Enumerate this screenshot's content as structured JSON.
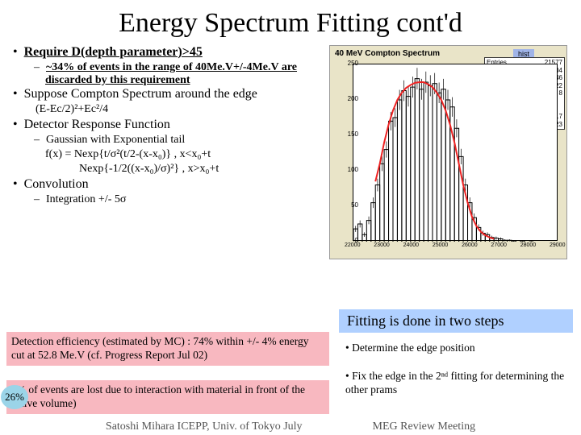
{
  "title": "Energy Spectrum Fitting cont'd",
  "bullets": {
    "b1": "Require D(depth parameter)>45",
    "b1a": "~34% of events in the range of 40Me.V+/-4Me.V are discarded by this requirement",
    "b2": "Suppose Compton Spectrum around the edge",
    "b2f": "(E-Ec/2)²+Ec²/4",
    "b3": "Detector Response Function",
    "b3a": "Gaussian with Exponential tail",
    "b3f1": "f(x) = Nexp{t/σ²(t/2-(x-x₀)} , x<x₀+t",
    "b3f2": "Nexp{-1/2((x-x₀)/σ)²} , x>x₀+t",
    "b4": "Convolution",
    "b4a": "Integration +/- 5σ"
  },
  "chart": {
    "title": "40 MeV Compton Spectrum",
    "label": "hist",
    "stats": {
      "r1k": "Entries",
      "r1v": "21577",
      "r2k": "Mean",
      "r2v": "2.407e+04",
      "r3k": "RMS",
      "r3v": "1346",
      "r4k": "χ²/ndf",
      "r4v": "56.12 / 22",
      "r5k": "Edge",
      "r5v": "2.545e+04 ± 8",
      "r6k": "Sigma",
      "r6v": "3.29e+06 ± 8.01e+10",
      "r7k": "Sigma2",
      "r7v": "347.5 ± 8.7",
      "r8k": "",
      "r8v": "-157 ± 45.23"
    },
    "y": {
      "max": 250,
      "ticks": [
        0,
        50,
        100,
        150,
        200,
        250
      ]
    },
    "x": {
      "min": 22000,
      "max": 29000,
      "ticks": [
        22000,
        23000,
        24000,
        25000,
        26000,
        27000,
        28000,
        29000
      ]
    },
    "bins": [
      [
        22000,
        18
      ],
      [
        22150,
        25
      ],
      [
        22300,
        10
      ],
      [
        22450,
        30
      ],
      [
        22600,
        55
      ],
      [
        22750,
        80
      ],
      [
        22900,
        110
      ],
      [
        23050,
        130
      ],
      [
        23200,
        170
      ],
      [
        23350,
        175
      ],
      [
        23500,
        200
      ],
      [
        23650,
        213
      ],
      [
        23800,
        205
      ],
      [
        23950,
        218
      ],
      [
        24100,
        230
      ],
      [
        24250,
        215
      ],
      [
        24400,
        225
      ],
      [
        24550,
        220
      ],
      [
        24700,
        223
      ],
      [
        24850,
        210
      ],
      [
        25000,
        215
      ],
      [
        25150,
        200
      ],
      [
        25300,
        190
      ],
      [
        25450,
        160
      ],
      [
        25600,
        120
      ],
      [
        25750,
        80
      ],
      [
        25900,
        55
      ],
      [
        26050,
        34
      ],
      [
        26200,
        20
      ],
      [
        26350,
        12
      ],
      [
        26500,
        10
      ],
      [
        26650,
        6
      ],
      [
        26800,
        5
      ],
      [
        26950,
        4
      ],
      [
        27100,
        2
      ],
      [
        27250,
        2
      ],
      [
        27400,
        1
      ],
      [
        27700,
        1
      ],
      [
        28000,
        0
      ]
    ],
    "fit": [
      [
        22750,
        85
      ],
      [
        22900,
        110
      ],
      [
        23050,
        140
      ],
      [
        23200,
        165
      ],
      [
        23350,
        185
      ],
      [
        23500,
        200
      ],
      [
        23650,
        210
      ],
      [
        23800,
        217
      ],
      [
        23950,
        221
      ],
      [
        24100,
        224
      ],
      [
        24250,
        225
      ],
      [
        24400,
        225
      ],
      [
        24550,
        222
      ],
      [
        24700,
        218
      ],
      [
        24850,
        210
      ],
      [
        25000,
        200
      ],
      [
        25150,
        185
      ],
      [
        25300,
        165
      ],
      [
        25450,
        140
      ],
      [
        25600,
        110
      ],
      [
        25750,
        80
      ],
      [
        25900,
        55
      ],
      [
        26050,
        35
      ],
      [
        26200,
        22
      ],
      [
        26350,
        14
      ],
      [
        26500,
        9
      ],
      [
        26650,
        6
      ],
      [
        26800,
        4
      ]
    ],
    "colors": {
      "hist": "#000000",
      "fit": "#ee2222",
      "bg": "#e9e4c8",
      "plot": "#ffffff"
    }
  },
  "callout": "Fitting is done in two steps",
  "pink1": "Detection efficiency (estimated by MC) : 74% within +/- 4% energy cut at 52.8 Me.V (cf. Progress Report Jul 02)",
  "pink2_a": "5% of events are lost due to interaction with material in front of the active volume)",
  "cyan": "26%",
  "side_a": "• Determine the edge position",
  "side_b": "• Fix the edge in the 2ⁿᵈ fitting for determining the other prams",
  "footer_l": "Satoshi Mihara ICEPP, Univ. of Tokyo July",
  "footer_r": "MEG Review Meeting"
}
